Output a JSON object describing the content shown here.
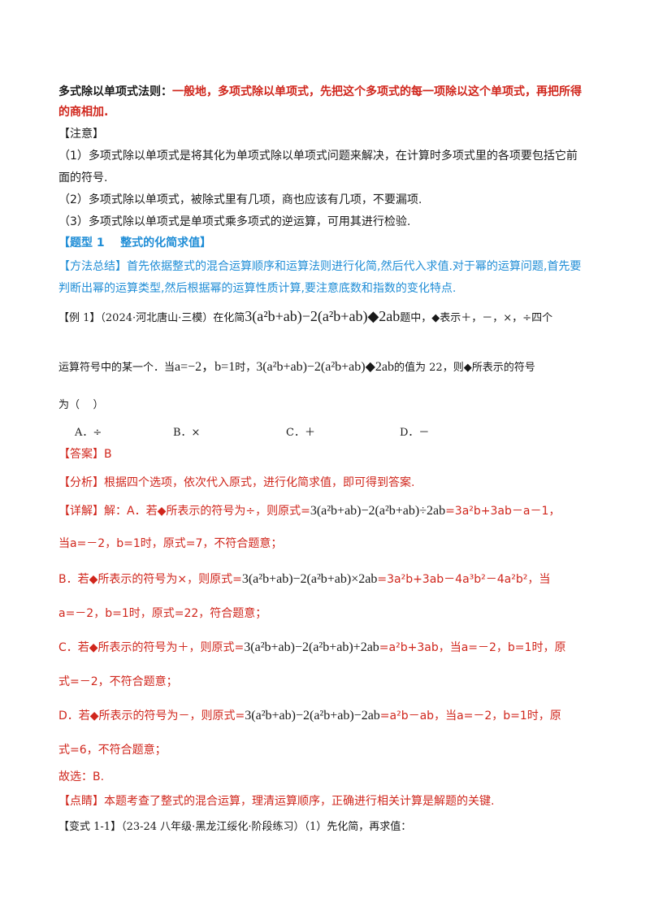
{
  "rule": {
    "label": "多式除以单项式法则：",
    "text1": "一般地，多项式除以单项式，先把这个多项式的每一项除以这个单项式，再把所得",
    "text2": "的商相加."
  },
  "note": {
    "title": "【注意】",
    "item1a": "（1）多项式除以单项式是将其化为单项式除以单项式问题来解决，在计算时多项式里的各项要包括它前",
    "item1b": "面的符号.",
    "item2": "（2）多项式除以单项式，被除式里有几项，商也应该有几项，不要漏项.",
    "item3": "（3）多项式除以单项式是单项式乘多项式的逆运算，可用其进行检验."
  },
  "topic": {
    "label": "【题型 1    整式的化简求值】"
  },
  "method": {
    "label": "【方法总结】",
    "text1": "首先依据整式的混合运算顺序和运算法则进行化简,然后代入求值.对于幂的运算问题,首先要",
    "text2": "判断出幂的运算类型,然后根据幂的运算性质计算,要注意底数和指数的变化特点."
  },
  "example": {
    "label": "【例 1】",
    "source": "（2024·河北唐山·三模）在化简",
    "mid1": "题中，◆表示＋，－，×，÷四个",
    "line2a": "运算符号中的某一个．当",
    "line2b": "时，",
    "line2c": "的值为 22，则◆所表示的符号",
    "line3": "为（    ）",
    "optA": "A．÷",
    "optB": "B．×",
    "optC": "C．＋",
    "optD": "D．－"
  },
  "answer": {
    "label": "【答案】",
    "value": "B"
  },
  "analysis": {
    "label": "【分析】",
    "text": "根据四个选项，依次代入原式，进行化简求值，即可得到答案."
  },
  "detail": {
    "label": "【详解】",
    "a_intro": "解：A．若◆所表示的符号为÷，则原式=",
    "a_result": "=3a²b+3ab－a－1，",
    "a_line2": "当a=－2，b=1时，原式=7，不符合题意；",
    "b_intro": "B．若◆所表示的符号为×，则原式=",
    "b_result": "=3a²b+3ab－4a³b²－4a²b²，当",
    "b_line2": "a=－2，b=1时，原式=22，符合题意；",
    "c_intro": "C．若◆所表示的符号为＋，则原式=",
    "c_result": "=a²b+3ab，当a=－2，b=1时，原",
    "c_line2": "式=－2，不符合题意；",
    "d_intro": "D．若◆所表示的符号为－，则原式=",
    "d_result": "=a²b－ab，当a=－2，b=1时，原",
    "d_line2": "式=6，不符合题意；",
    "conclusion": "故选：B."
  },
  "comment": {
    "label": "【点睛】",
    "text": "本题考查了整式的混合运算，理清运算顺序，正确进行相关计算是解题的关键."
  },
  "variant": {
    "label": "【变式 1-1】",
    "text": "（23-24 八年级·黑龙江绥化·阶段练习）（1）先化简，再求值："
  },
  "math": {
    "expr_diamond": "3(a²b+ab)−2(a²b+ab)◆2ab",
    "vals": "a=−2，b=1",
    "expr_div": "3(a²b+ab)−2(a²b+ab)÷2ab",
    "expr_mul": "3(a²b+ab)−2(a²b+ab)×2ab",
    "expr_add": "3(a²b+ab)−2(a²b+ab)+2ab",
    "expr_sub": "3(a²b+ab)−2(a²b+ab)−2ab"
  }
}
